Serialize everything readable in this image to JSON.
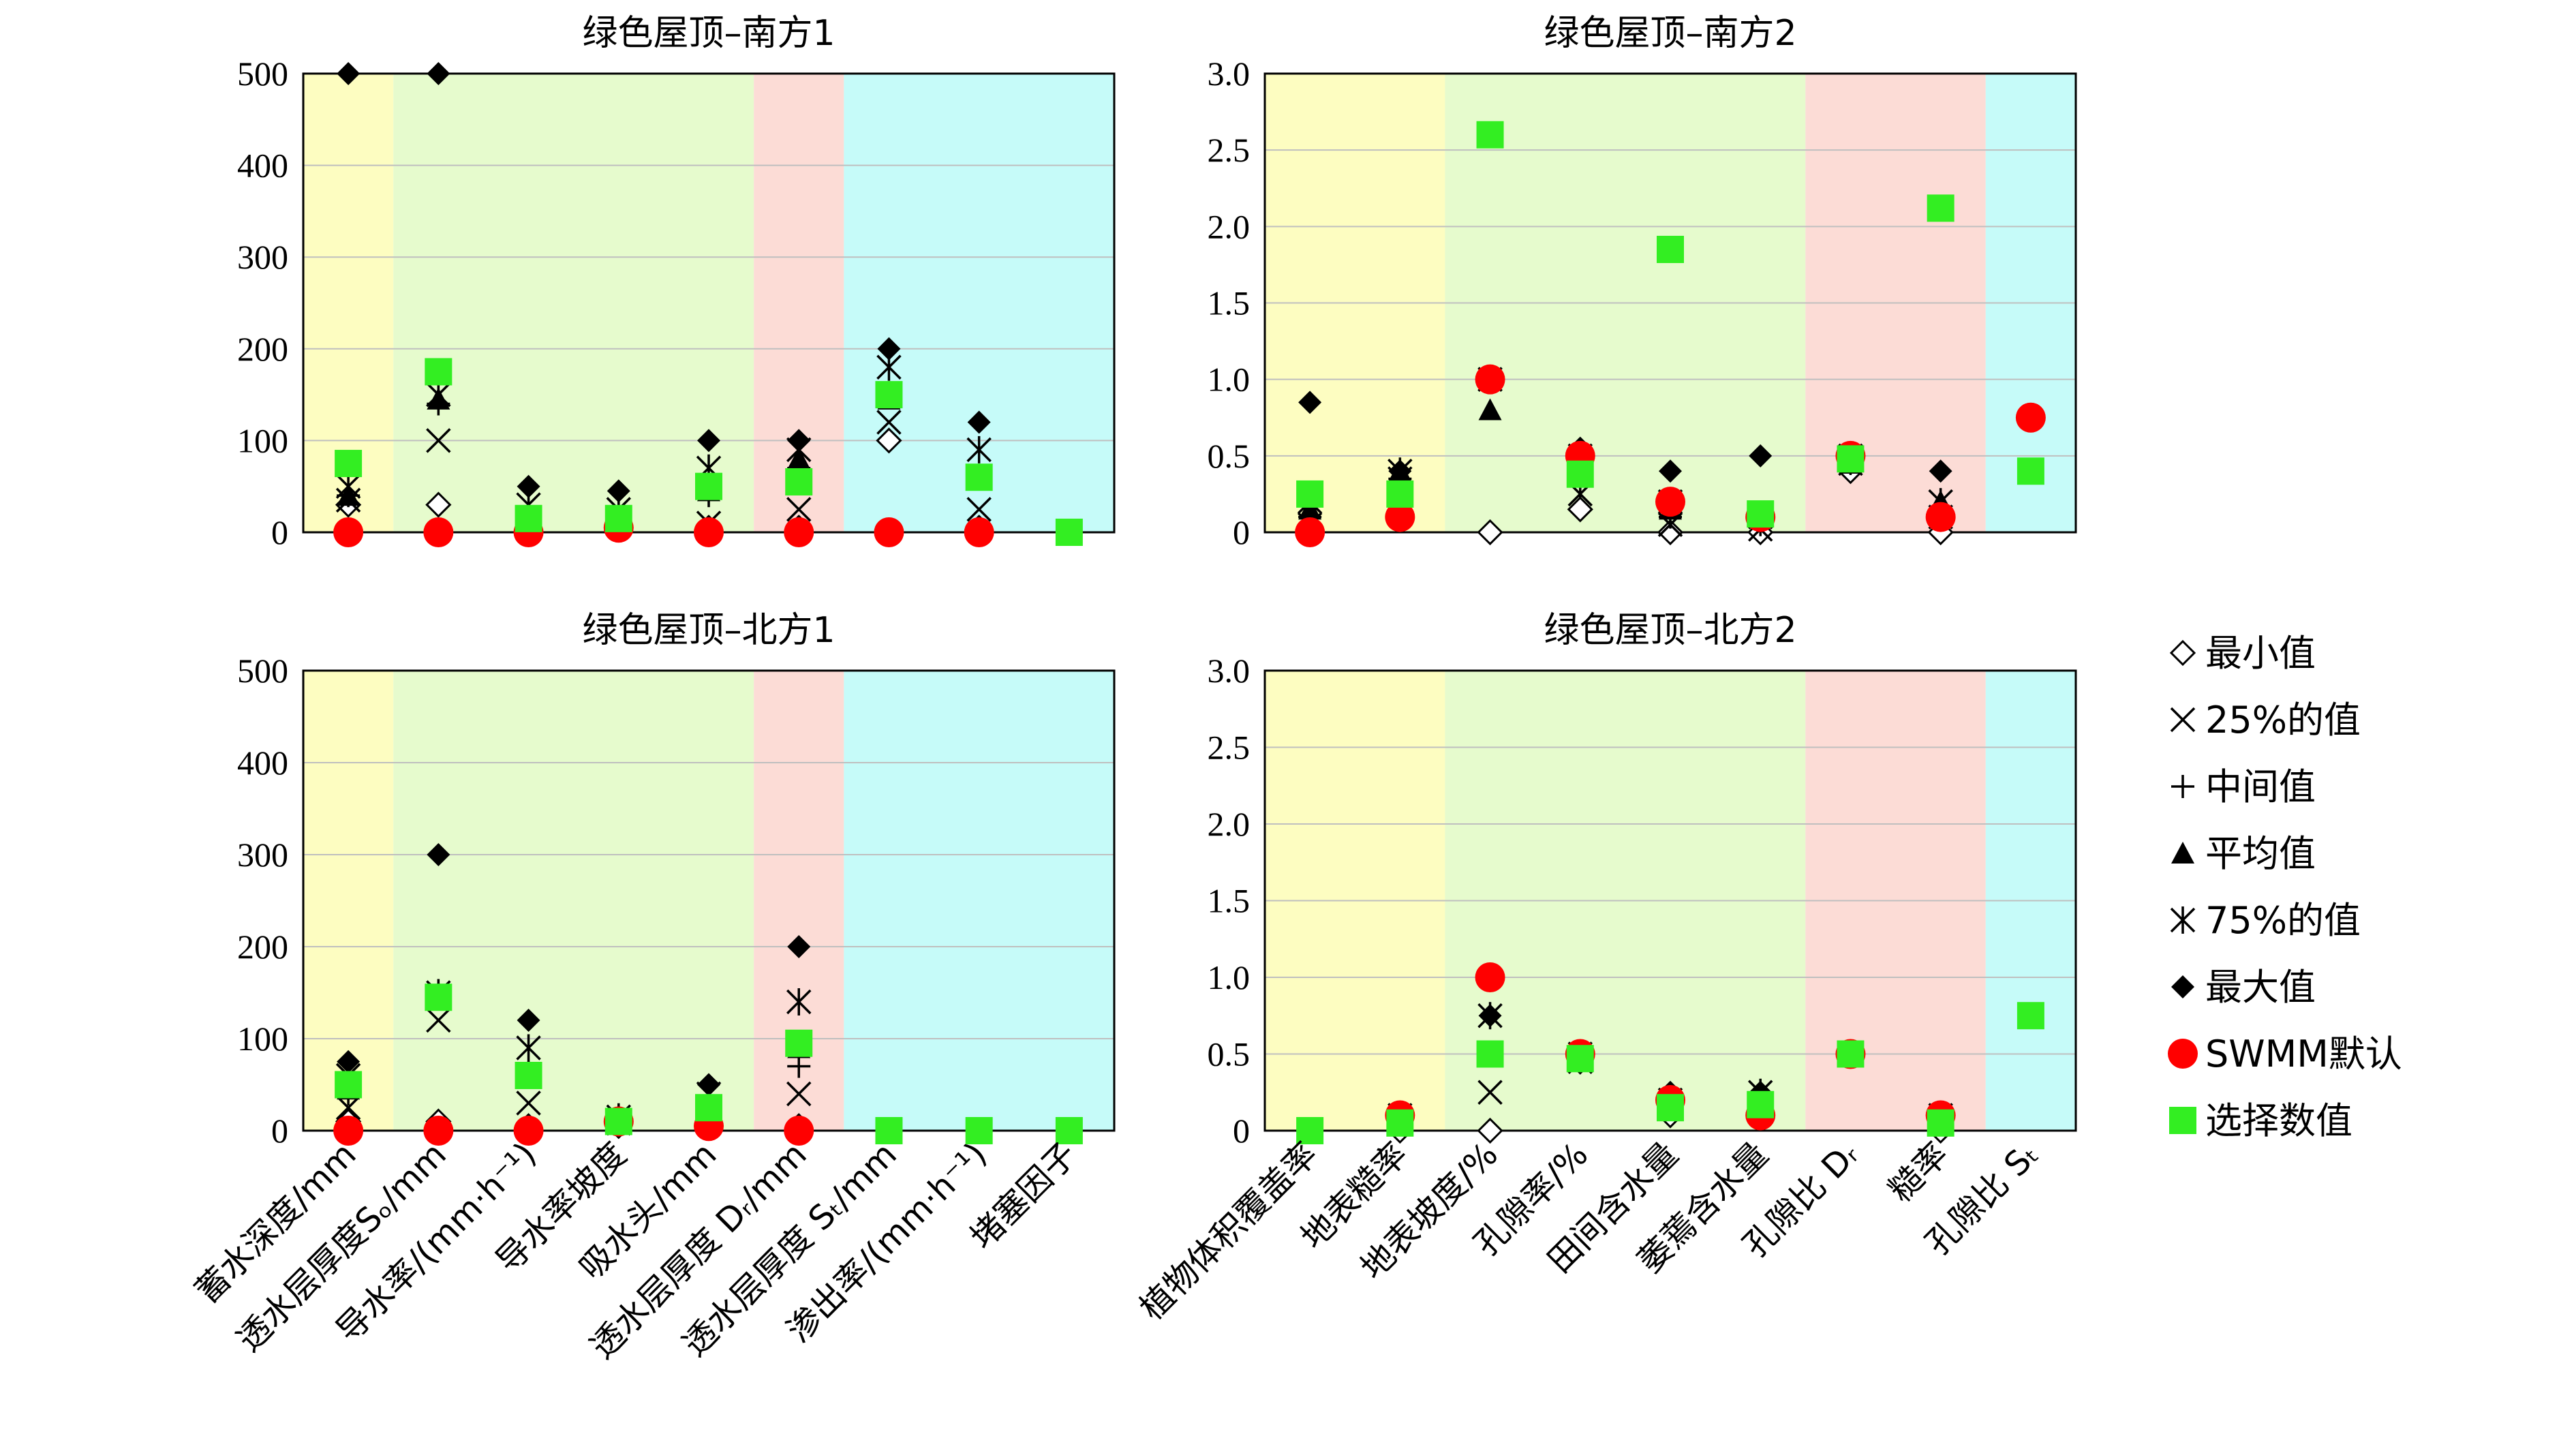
{
  "figure_name": "green-roof-parameter-sensitivity",
  "colors": {
    "yellow": "#fdfdc1",
    "green": "#e6fbcd",
    "red": "#fcdcd6",
    "cyan": "#c6fbf9",
    "swmm": "#ff0000",
    "selected": "#33ee22",
    "marker": "#000000"
  },
  "legend": {
    "items": [
      {
        "key": "min",
        "label": "最小值",
        "shape": "diamond-open"
      },
      {
        "key": "p25",
        "label": "25%的值",
        "shape": "x"
      },
      {
        "key": "median",
        "label": "中间值",
        "shape": "plus"
      },
      {
        "key": "mean",
        "label": "平均值",
        "shape": "triangle"
      },
      {
        "key": "p75",
        "label": "75%的值",
        "shape": "asterisk"
      },
      {
        "key": "max",
        "label": "最大值",
        "shape": "diamond-filled"
      },
      {
        "key": "swmm",
        "label": "SWMM默认",
        "shape": "circle-red"
      },
      {
        "key": "selected",
        "label": "选择数值",
        "shape": "square-green"
      }
    ]
  },
  "chart_data": [
    {
      "type": "scatter",
      "title": "绿色屋顶–南方1",
      "ylim": [
        0,
        500
      ],
      "yticks": [
        "0",
        "100",
        "200",
        "300",
        "400",
        "500"
      ],
      "categories": [
        "蓄水深度/mm",
        "透水层厚度Sₒ/mm",
        "导水率/(mm·h⁻¹)",
        "导水率坡度",
        "吸水头/mm",
        "透水层厚度 Dᵣ/mm",
        "透水层厚度 Sₜ/mm",
        "渗出率/(mm·h⁻¹)",
        "堵塞因子"
      ],
      "bands": [
        {
          "color": "yellow",
          "from": 0,
          "to": 1
        },
        {
          "color": "green",
          "from": 1,
          "to": 5
        },
        {
          "color": "red",
          "from": 5,
          "to": 6
        },
        {
          "color": "cyan",
          "from": 6,
          "to": 9
        }
      ],
      "series": {
        "min": [
          30,
          30,
          5,
          5,
          5,
          5,
          100,
          5,
          null
        ],
        "p25": [
          35,
          100,
          10,
          10,
          10,
          25,
          120,
          25,
          null
        ],
        "median": [
          40,
          140,
          15,
          15,
          40,
          70,
          150,
          60,
          null
        ],
        "mean": [
          40,
          145,
          20,
          18,
          45,
          80,
          145,
          60,
          null
        ],
        "p75": [
          50,
          150,
          30,
          25,
          70,
          90,
          180,
          90,
          null
        ],
        "max": [
          500,
          500,
          50,
          45,
          100,
          100,
          200,
          120,
          null
        ],
        "swmm": [
          0,
          0,
          0,
          5,
          0,
          0,
          0,
          0,
          null
        ],
        "selected": [
          75,
          175,
          15,
          15,
          50,
          55,
          150,
          60,
          0
        ]
      }
    },
    {
      "type": "scatter",
      "title": "绿色屋顶–南方2",
      "ylim": [
        0,
        3
      ],
      "yticks": [
        "0",
        "0.5",
        "1.0",
        "1.5",
        "2.0",
        "2.5",
        "3.0"
      ],
      "categories": [
        "植物体积覆盖率",
        "地表糙率",
        "地表坡度/%",
        "孔隙率/%",
        "田间含水量",
        "萎蔫含水量",
        "孔隙比 Dᵣ",
        "糙率",
        "孔隙比 Sₜ"
      ],
      "bands": [
        {
          "color": "yellow",
          "from": 0,
          "to": 2
        },
        {
          "color": "green",
          "from": 2,
          "to": 6
        },
        {
          "color": "red",
          "from": 6,
          "to": 8
        },
        {
          "color": "cyan",
          "from": 8,
          "to": 9
        }
      ],
      "series": {
        "min": [
          0.0,
          0.3,
          0.0,
          0.15,
          0.0,
          0.0,
          0.4,
          0.0,
          null
        ],
        "p25": [
          0.05,
          0.35,
          1.0,
          0.25,
          0.05,
          0.02,
          0.45,
          0.1,
          null
        ],
        "median": [
          0.1,
          0.35,
          1.0,
          0.3,
          0.1,
          0.05,
          0.45,
          0.15,
          null
        ],
        "mean": [
          0.15,
          0.4,
          0.8,
          0.45,
          0.15,
          0.1,
          0.45,
          0.2,
          null
        ],
        "p75": [
          0.2,
          0.4,
          1.0,
          0.5,
          0.2,
          0.1,
          0.5,
          0.2,
          null
        ],
        "max": [
          0.85,
          0.4,
          1.0,
          0.55,
          0.4,
          0.5,
          0.5,
          0.4,
          null
        ],
        "swmm": [
          0.0,
          0.1,
          1.0,
          0.5,
          0.2,
          0.1,
          0.5,
          0.1,
          0.75
        ],
        "selected": [
          0.25,
          0.25,
          2.6,
          0.38,
          1.85,
          0.12,
          0.48,
          2.12,
          0.4
        ]
      }
    },
    {
      "type": "scatter",
      "title": "绿色屋顶–北方1",
      "ylim": [
        0,
        500
      ],
      "yticks": [
        "0",
        "100",
        "200",
        "300",
        "400",
        "500"
      ],
      "categories": [
        "蓄水深度/mm",
        "透水层厚度Sₒ/mm",
        "导水率/(mm·h⁻¹)",
        "导水率坡度",
        "吸水头/mm",
        "透水层厚度 Dᵣ/mm",
        "透水层厚度 Sₜ/mm",
        "渗出率/(mm·h⁻¹)",
        "堵塞因子"
      ],
      "bands": [
        {
          "color": "yellow",
          "from": 0,
          "to": 1
        },
        {
          "color": "green",
          "from": 1,
          "to": 5
        },
        {
          "color": "red",
          "from": 5,
          "to": 6
        },
        {
          "color": "cyan",
          "from": 6,
          "to": 9
        }
      ],
      "series": {
        "min": [
          10,
          10,
          5,
          5,
          5,
          5,
          null,
          null,
          null
        ],
        "p25": [
          25,
          120,
          30,
          8,
          15,
          40,
          null,
          null,
          null
        ],
        "median": [
          40,
          145,
          60,
          10,
          30,
          70,
          null,
          null,
          null
        ],
        "mean": [
          45,
          150,
          65,
          12,
          30,
          90,
          null,
          null,
          null
        ],
        "p75": [
          60,
          150,
          90,
          15,
          40,
          140,
          null,
          null,
          null
        ],
        "max": [
          75,
          300,
          120,
          15,
          50,
          200,
          null,
          null,
          null
        ],
        "swmm": [
          0,
          0,
          0,
          10,
          5,
          0,
          null,
          null,
          null
        ],
        "selected": [
          50,
          145,
          60,
          10,
          25,
          95,
          0,
          0,
          0
        ]
      }
    },
    {
      "type": "scatter",
      "title": "绿色屋顶–北方2",
      "ylim": [
        0,
        3
      ],
      "yticks": [
        "0",
        "0.5",
        "1.0",
        "1.5",
        "2.0",
        "2.5",
        "3.0"
      ],
      "categories": [
        "植物体积覆盖率",
        "地表糙率",
        "地表坡度/%",
        "孔隙率/%",
        "田间含水量",
        "萎蔫含水量",
        "孔隙比 Dᵣ",
        "糙率",
        "孔隙比 Sₜ"
      ],
      "bands": [
        {
          "color": "yellow",
          "from": 0,
          "to": 2
        },
        {
          "color": "green",
          "from": 2,
          "to": 6
        },
        {
          "color": "red",
          "from": 6,
          "to": 8
        },
        {
          "color": "cyan",
          "from": 8,
          "to": 9
        }
      ],
      "series": {
        "min": [
          null,
          0.0,
          0.0,
          0.45,
          0.1,
          0.1,
          null,
          0.0,
          null
        ],
        "p25": [
          null,
          0.05,
          0.25,
          0.45,
          0.15,
          0.15,
          null,
          0.05,
          null
        ],
        "median": [
          null,
          0.05,
          0.5,
          0.45,
          0.15,
          0.2,
          null,
          0.05,
          null
        ],
        "mean": [
          null,
          0.08,
          0.5,
          0.47,
          0.18,
          0.2,
          null,
          0.08,
          null
        ],
        "p75": [
          null,
          0.1,
          0.75,
          0.5,
          0.2,
          0.25,
          null,
          0.1,
          null
        ],
        "max": [
          null,
          0.1,
          0.75,
          0.5,
          0.25,
          0.25,
          null,
          0.1,
          null
        ],
        "swmm": [
          null,
          0.1,
          1.0,
          0.5,
          0.2,
          0.1,
          0.5,
          0.1,
          null
        ],
        "selected": [
          0.0,
          0.05,
          0.5,
          0.47,
          0.15,
          0.17,
          0.5,
          0.05,
          0.75
        ]
      }
    }
  ]
}
